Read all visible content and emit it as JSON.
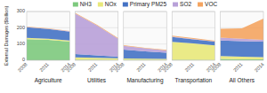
{
  "chart_data": [
    {
      "type": "area",
      "stacked": true,
      "grid": true,
      "legend": "top",
      "ylabel": "External Damages ($billion)",
      "xlabel": "Agriculture",
      "x": [
        2008,
        2011,
        2014
      ],
      "xlim": [
        2008,
        2014
      ],
      "xticks": [
        2008,
        2011,
        2014
      ],
      "ylim": [
        0,
        300
      ],
      "yticks": [
        0,
        100,
        200,
        300
      ],
      "series": [
        {
          "name": "NH3",
          "color": "#7dc97d",
          "values": [
            130,
            125,
            115
          ]
        },
        {
          "name": "NOx",
          "color": "#e8e87a",
          "values": [
            8,
            7,
            6
          ]
        },
        {
          "name": "Primary PM25",
          "color": "#4472c4",
          "values": [
            65,
            60,
            55
          ]
        },
        {
          "name": "SO2",
          "color": "#b8a0d8",
          "values": [
            2,
            2,
            2
          ]
        },
        {
          "name": "VOC",
          "color": "#f4a460",
          "values": [
            2,
            2,
            2
          ]
        }
      ]
    },
    {
      "type": "area",
      "stacked": true,
      "grid": true,
      "tick_labels": "x",
      "xlabel": "Utilities",
      "x": [
        2008,
        2011,
        2014
      ],
      "xlim": [
        2008,
        2014
      ],
      "xticks": [
        2008,
        2011,
        2014
      ],
      "ylim": [
        0,
        300
      ],
      "yticks": [
        0,
        100,
        200,
        300
      ],
      "series": [
        {
          "color": "#7dc97d",
          "values": [
            3,
            3,
            2
          ]
        },
        {
          "color": "#e8e87a",
          "values": [
            15,
            12,
            10
          ]
        },
        {
          "color": "#4472c4",
          "values": [
            20,
            15,
            10
          ]
        },
        {
          "color": "#b8a0d8",
          "values": [
            250,
            185,
            110
          ]
        },
        {
          "color": "#f4a460",
          "values": [
            4,
            4,
            4
          ]
        }
      ]
    },
    {
      "type": "area",
      "stacked": true,
      "grid": true,
      "tick_labels": "x",
      "xlabel": "Manufacturing",
      "x": [
        2008,
        2011,
        2014
      ],
      "xlim": [
        2008,
        2014
      ],
      "xticks": [
        2008,
        2011,
        2014
      ],
      "ylim": [
        0,
        300
      ],
      "yticks": [
        0,
        100,
        200,
        300
      ],
      "series": [
        {
          "color": "#7dc97d",
          "values": [
            3,
            3,
            2
          ]
        },
        {
          "color": "#e8e87a",
          "values": [
            8,
            7,
            6
          ]
        },
        {
          "color": "#4472c4",
          "values": [
            55,
            45,
            38
          ]
        },
        {
          "color": "#b8a0d8",
          "values": [
            22,
            18,
            14
          ]
        },
        {
          "color": "#f4a460",
          "values": [
            5,
            4,
            4
          ]
        }
      ]
    },
    {
      "type": "area",
      "stacked": true,
      "grid": true,
      "tick_labels": "x",
      "xlabel": "Transportation",
      "x": [
        2008,
        2011,
        2014
      ],
      "xlim": [
        2008,
        2014
      ],
      "xticks": [
        2008,
        2011,
        2014
      ],
      "ylim": [
        0,
        300
      ],
      "yticks": [
        0,
        100,
        200,
        300
      ],
      "series": [
        {
          "color": "#7dc97d",
          "values": [
            3,
            3,
            2
          ]
        },
        {
          "color": "#e8e87a",
          "values": [
            110,
            100,
            90
          ]
        },
        {
          "color": "#4472c4",
          "values": [
            30,
            25,
            22
          ]
        },
        {
          "color": "#b8a0d8",
          "values": [
            3,
            3,
            2
          ]
        },
        {
          "color": "#f4a460",
          "values": [
            5,
            5,
            4
          ]
        }
      ]
    },
    {
      "type": "area",
      "stacked": true,
      "grid": true,
      "tick_labels": "x",
      "xlabel": "All Others",
      "x": [
        2008,
        2011,
        2014
      ],
      "xlim": [
        2008,
        2014
      ],
      "xticks": [
        2008,
        2011,
        2014
      ],
      "ylim": [
        0,
        300
      ],
      "yticks": [
        0,
        100,
        200,
        300
      ],
      "series": [
        {
          "color": "#7dc97d",
          "values": [
            8,
            6,
            5
          ]
        },
        {
          "color": "#e8e87a",
          "values": [
            18,
            16,
            14
          ]
        },
        {
          "color": "#4472c4",
          "values": [
            95,
            95,
            95
          ]
        },
        {
          "color": "#b8a0d8",
          "values": [
            18,
            15,
            12
          ]
        },
        {
          "color": "#f4a460",
          "values": [
            55,
            65,
            130
          ]
        }
      ]
    }
  ]
}
